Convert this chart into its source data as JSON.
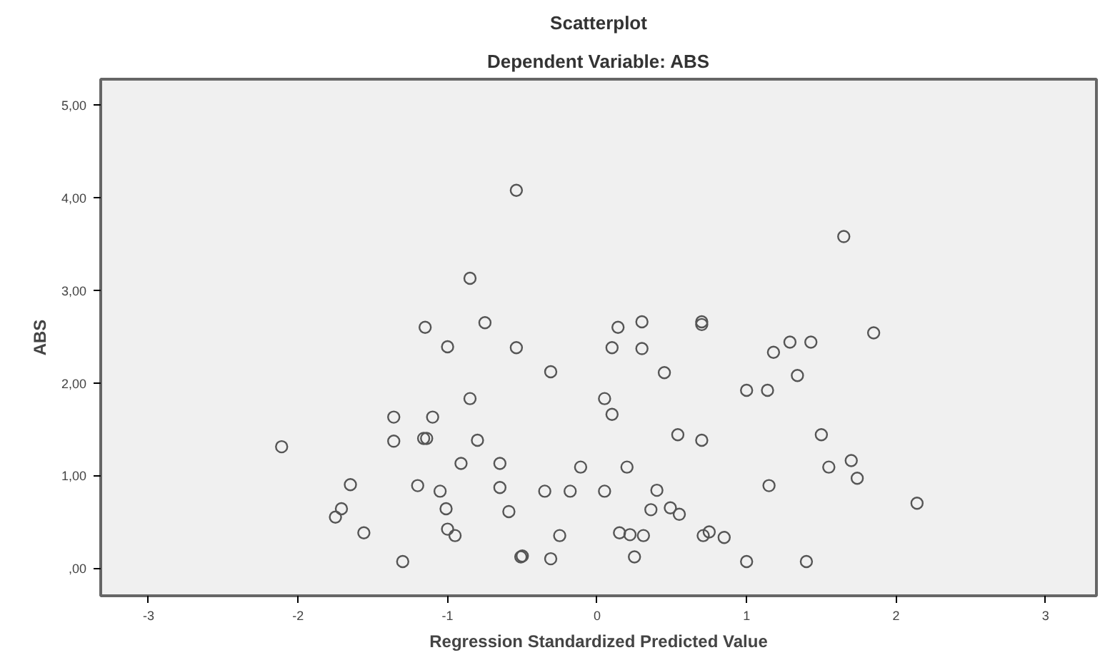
{
  "chart_data": {
    "type": "scatter",
    "title": "Scatterplot",
    "subtitle": "Dependent Variable: ABS",
    "xlabel": "Regression Standardized Predicted Value",
    "ylabel": "ABS",
    "xlim": [
      -3.32,
      3.34
    ],
    "ylim": [
      -0.3,
      5.28
    ],
    "xticks": [
      -3,
      -2,
      -1,
      0,
      1,
      2,
      3
    ],
    "yticks": [
      {
        "value": 0,
        "label": ",00"
      },
      {
        "value": 1,
        "label": "1,00"
      },
      {
        "value": 2,
        "label": "2,00"
      },
      {
        "value": 3,
        "label": "3,00"
      },
      {
        "value": 4,
        "label": "4,00"
      },
      {
        "value": 5,
        "label": "5,00"
      }
    ],
    "grid": false,
    "marker": "circle",
    "series": [
      {
        "color": "#555555",
        "x": [
          -0.54,
          -0.85,
          -1.15,
          -0.75,
          -1.0,
          -0.54,
          -0.31,
          1.65,
          0.14,
          0.3,
          0.7,
          0.7,
          0.1,
          0.3,
          1.29,
          1.43,
          1.18,
          1.85,
          0.45,
          1.34,
          -0.85,
          -1.36,
          -1.1,
          -1.36,
          -1.16,
          -1.14,
          -0.8,
          -2.11,
          -0.91,
          -0.65,
          -1.65,
          -1.2,
          -1.05,
          -0.65,
          -0.35,
          -0.18,
          -1.71,
          -1.75,
          -1.01,
          -0.59,
          -1.56,
          -1.0,
          -0.95,
          -0.25,
          -1.3,
          -0.51,
          -0.5,
          -0.31,
          1.0,
          1.14,
          0.05,
          0.1,
          0.54,
          0.7,
          1.5,
          -0.11,
          0.2,
          1.55,
          1.7,
          1.74,
          0.05,
          0.4,
          1.15,
          0.36,
          0.49,
          0.55,
          2.14,
          0.15,
          0.22,
          0.31,
          0.71,
          0.75,
          0.85,
          0.25,
          1.0,
          1.4
        ],
        "values": [
          4.08,
          3.13,
          2.6,
          2.65,
          2.39,
          2.38,
          2.12,
          3.58,
          2.6,
          2.66,
          2.66,
          2.63,
          2.38,
          2.37,
          2.44,
          2.44,
          2.33,
          2.54,
          2.11,
          2.08,
          1.83,
          1.63,
          1.63,
          1.37,
          1.4,
          1.4,
          1.38,
          1.31,
          1.13,
          1.13,
          0.9,
          0.89,
          0.83,
          0.87,
          0.83,
          0.83,
          0.64,
          0.55,
          0.64,
          0.61,
          0.38,
          0.42,
          0.35,
          0.35,
          0.07,
          0.12,
          0.13,
          0.1,
          1.92,
          1.92,
          1.83,
          1.66,
          1.44,
          1.38,
          1.44,
          1.09,
          1.09,
          1.09,
          1.16,
          0.97,
          0.83,
          0.84,
          0.89,
          0.63,
          0.65,
          0.58,
          0.7,
          0.38,
          0.36,
          0.35,
          0.35,
          0.39,
          0.33,
          0.12,
          0.07,
          0.07
        ]
      }
    ]
  }
}
